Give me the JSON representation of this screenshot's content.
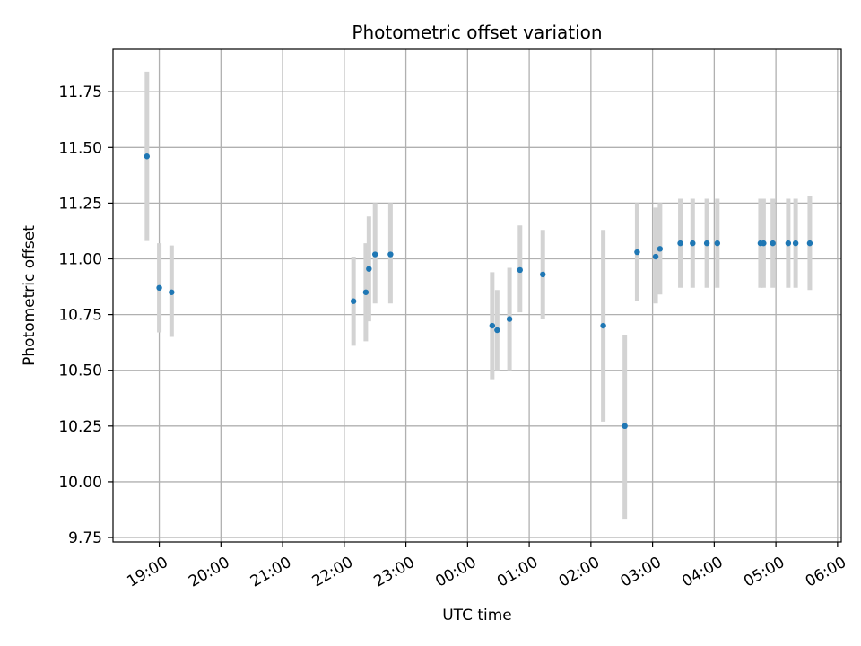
{
  "chart_data": {
    "type": "scatter",
    "title": "Photometric offset variation",
    "xlabel": "UTC time",
    "ylabel": "Photometric offset",
    "x_unit": "UTC time (hours, continuing past midnight)",
    "xlim": [
      18.25,
      30.06
    ],
    "ylim": [
      9.73,
      11.94
    ],
    "y_ticks": [
      9.75,
      10.0,
      10.25,
      10.5,
      10.75,
      11.0,
      11.25,
      11.5,
      11.75
    ],
    "y_tick_labels": [
      "9.75",
      "10.00",
      "10.25",
      "10.50",
      "10.75",
      "11.00",
      "11.25",
      "11.50",
      "11.75"
    ],
    "x_ticks": [
      19,
      20,
      21,
      22,
      23,
      24,
      25,
      26,
      27,
      28,
      29,
      30
    ],
    "x_tick_labels": [
      "19:00",
      "20:00",
      "21:00",
      "22:00",
      "23:00",
      "00:00",
      "01:00",
      "02:00",
      "03:00",
      "04:00",
      "05:00",
      "06:00"
    ],
    "grid": true,
    "colors": {
      "point": "#1f77b4",
      "errorbar": "#d3d3d3",
      "grid": "#b0b0b0"
    },
    "points": [
      {
        "x": 18.8,
        "y": 11.46,
        "lo": 11.08,
        "hi": 11.84
      },
      {
        "x": 19.0,
        "y": 10.87,
        "lo": 10.67,
        "hi": 11.07
      },
      {
        "x": 19.2,
        "y": 10.85,
        "lo": 10.65,
        "hi": 11.06
      },
      {
        "x": 22.15,
        "y": 10.81,
        "lo": 10.61,
        "hi": 11.01
      },
      {
        "x": 22.35,
        "y": 10.85,
        "lo": 10.63,
        "hi": 11.07
      },
      {
        "x": 22.4,
        "y": 10.955,
        "lo": 10.72,
        "hi": 11.19
      },
      {
        "x": 22.5,
        "y": 11.02,
        "lo": 10.8,
        "hi": 11.25
      },
      {
        "x": 22.75,
        "y": 11.02,
        "lo": 10.8,
        "hi": 11.25
      },
      {
        "x": 24.4,
        "y": 10.7,
        "lo": 10.46,
        "hi": 10.94
      },
      {
        "x": 24.48,
        "y": 10.68,
        "lo": 10.5,
        "hi": 10.86
      },
      {
        "x": 24.68,
        "y": 10.73,
        "lo": 10.5,
        "hi": 10.96
      },
      {
        "x": 24.85,
        "y": 10.95,
        "lo": 10.76,
        "hi": 11.15
      },
      {
        "x": 25.22,
        "y": 10.93,
        "lo": 10.73,
        "hi": 11.13
      },
      {
        "x": 26.2,
        "y": 10.7,
        "lo": 10.27,
        "hi": 11.13
      },
      {
        "x": 26.55,
        "y": 10.25,
        "lo": 9.83,
        "hi": 10.66
      },
      {
        "x": 26.75,
        "y": 11.03,
        "lo": 10.81,
        "hi": 11.25
      },
      {
        "x": 27.05,
        "y": 11.01,
        "lo": 10.8,
        "hi": 11.23
      },
      {
        "x": 27.12,
        "y": 11.045,
        "lo": 10.84,
        "hi": 11.25
      },
      {
        "x": 27.45,
        "y": 11.07,
        "lo": 10.87,
        "hi": 11.27
      },
      {
        "x": 27.65,
        "y": 11.07,
        "lo": 10.87,
        "hi": 11.27
      },
      {
        "x": 27.88,
        "y": 11.07,
        "lo": 10.87,
        "hi": 11.27
      },
      {
        "x": 28.05,
        "y": 11.07,
        "lo": 10.87,
        "hi": 11.27
      },
      {
        "x": 28.75,
        "y": 11.07,
        "lo": 10.87,
        "hi": 11.27
      },
      {
        "x": 28.8,
        "y": 11.07,
        "lo": 10.87,
        "hi": 11.27
      },
      {
        "x": 28.95,
        "y": 11.07,
        "lo": 10.87,
        "hi": 11.27
      },
      {
        "x": 29.2,
        "y": 11.07,
        "lo": 10.87,
        "hi": 11.27
      },
      {
        "x": 29.32,
        "y": 11.07,
        "lo": 10.87,
        "hi": 11.27
      },
      {
        "x": 29.55,
        "y": 11.07,
        "lo": 10.86,
        "hi": 11.28
      }
    ]
  }
}
